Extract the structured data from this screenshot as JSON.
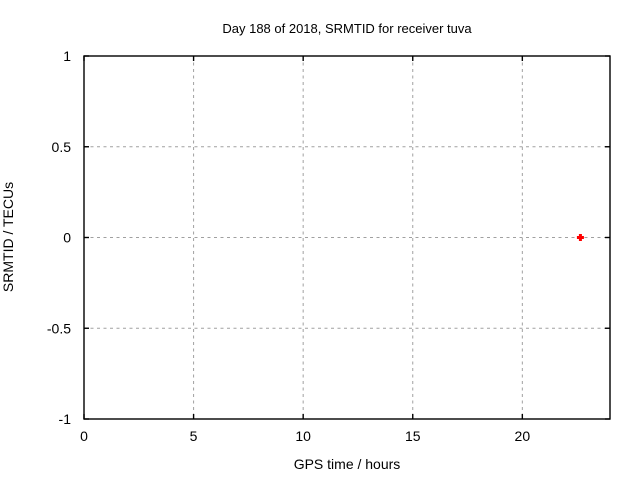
{
  "window": {
    "background": "#ffffff"
  },
  "chart_data": {
    "type": "scatter",
    "title": "Day 188 of 2018, SRMTID for receiver tuva",
    "xlabel": "GPS time / hours",
    "ylabel": "SRMTID / TECUs",
    "xlim": [
      0,
      24
    ],
    "ylim": [
      -1,
      1
    ],
    "xticks": [
      0,
      5,
      10,
      15,
      20
    ],
    "yticks": [
      -1,
      -0.5,
      0,
      0.5,
      1
    ],
    "grid": true,
    "grid_style": "dotted",
    "grid_color": "#a0a0a0",
    "axis_color": "#000000",
    "background_color": "#ffffff",
    "legend": "none",
    "tick_mirror": true,
    "series": [
      {
        "name": "SRMTID",
        "marker": "plus",
        "marker_size": 7,
        "color": "#ff0000",
        "points": [
          {
            "x": 22.65,
            "y": 0.0
          }
        ]
      }
    ]
  }
}
